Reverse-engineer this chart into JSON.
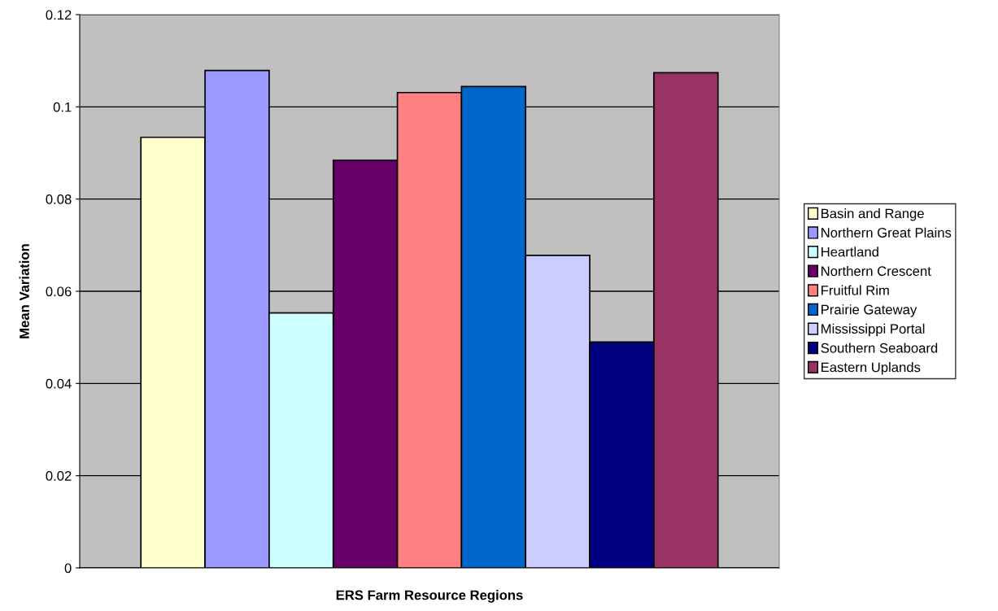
{
  "chart_data": {
    "type": "bar",
    "xlabel": "ERS Farm Resource Regions",
    "ylabel": "Mean Variation",
    "categories": [
      null
    ],
    "series": [
      {
        "name": "Basin and Range",
        "color": "#ffffcc",
        "values": [
          0.0934
        ]
      },
      {
        "name": "Northern Great Plains",
        "color": "#9999ff",
        "values": [
          0.1079
        ]
      },
      {
        "name": "Heartland",
        "color": "#ccffff",
        "values": [
          0.0553
        ]
      },
      {
        "name": "Northern Crescent",
        "color": "#660066",
        "values": [
          0.0884
        ]
      },
      {
        "name": "Fruitful Rim",
        "color": "#ff8080",
        "values": [
          0.1031
        ]
      },
      {
        "name": "Prairie Gateway",
        "color": "#0066cc",
        "values": [
          0.1044
        ]
      },
      {
        "name": "Mississippi Portal",
        "color": "#ccccff",
        "values": [
          0.0678
        ]
      },
      {
        "name": "Southern Seaboard",
        "color": "#000080",
        "values": [
          0.049
        ]
      },
      {
        "name": "Eastern Uplands",
        "color": "#993366",
        "values": [
          0.1074
        ]
      }
    ],
    "ylim": [
      0,
      0.12
    ],
    "yticks": [
      0,
      0.02,
      0.04,
      0.06,
      0.08,
      0.1,
      0.12
    ],
    "grid": "y",
    "legend": "right"
  }
}
